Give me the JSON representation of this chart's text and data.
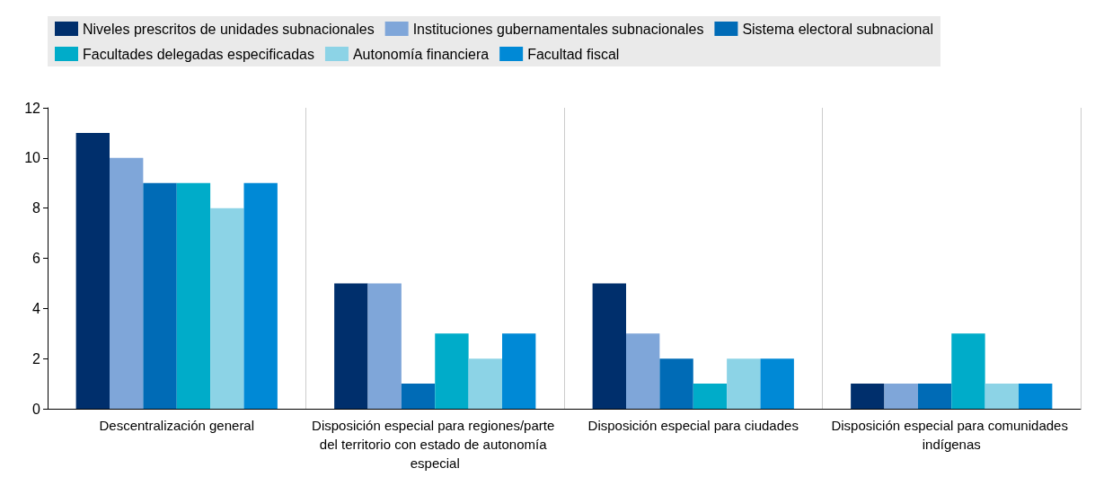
{
  "chart_data": {
    "type": "bar",
    "categories": [
      "Descentralización general",
      "Disposición especial para regiones/parte del territorio con estado de autonomía especial",
      "Disposición especial para ciudades",
      "Disposición especial para comunidades indígenas"
    ],
    "series": [
      {
        "name": "Niveles prescritos de unidades subnacionales",
        "color": "#002f6c",
        "values": [
          11,
          5,
          5,
          1
        ]
      },
      {
        "name": "Instituciones gubernamentales subnacionales",
        "color": "#7fa6d9",
        "values": [
          10,
          5,
          3,
          1
        ]
      },
      {
        "name": "Sistema electoral subnacional",
        "color": "#006bb6",
        "values": [
          9,
          1,
          2,
          1
        ]
      },
      {
        "name": "Facultades delegadas especificadas",
        "color": "#00acc9",
        "values": [
          9,
          3,
          1,
          3
        ]
      },
      {
        "name": "Autonomía financiera",
        "color": "#8cd3e6",
        "values": [
          8,
          2,
          2,
          1
        ]
      },
      {
        "name": "Facultad fiscal",
        "color": "#0089d6",
        "values": [
          9,
          3,
          2,
          1
        ]
      }
    ],
    "ylim": [
      0,
      12
    ],
    "yticks": [
      0,
      2,
      4,
      6,
      8,
      10,
      12
    ],
    "grid": "x",
    "legend": "top"
  }
}
